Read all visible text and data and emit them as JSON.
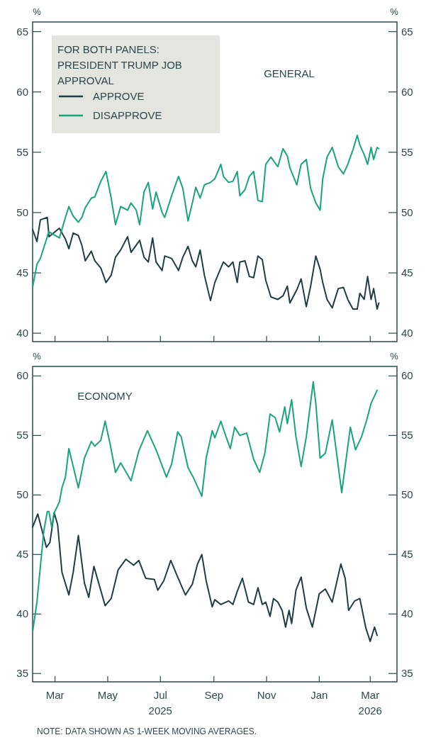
{
  "chart_data": [
    {
      "type": "line",
      "title": "GENERAL",
      "ylabel": "%",
      "y2label": "%",
      "legend_title": "FOR BOTH PANELS: PRESIDENT TRUMP JOB APPROVAL",
      "legend": "top left",
      "tick_labels": "y",
      "xlim": [
        "2025-02-03",
        "2026-04-01"
      ],
      "xticks": [
        {
          "value": "2025-03-01",
          "label": null
        },
        {
          "value": "2025-05-01",
          "label": null
        },
        {
          "value": "2025-07-01",
          "label": null
        },
        {
          "value": "2025-09-01",
          "label": null
        },
        {
          "value": "2025-11-01",
          "label": null
        },
        {
          "value": "2026-01-01",
          "label": null
        },
        {
          "value": "2026-03-01",
          "label": null
        }
      ],
      "ylim": [
        39.3,
        65.8
      ],
      "yticks": [
        40,
        45,
        50,
        55,
        60,
        65
      ],
      "y2lim": [
        39.3,
        65.8
      ],
      "y2ticks": [
        40,
        45,
        50,
        55,
        60,
        65
      ],
      "x": [
        "2025-02-03",
        "2025-02-08",
        "2025-02-12",
        "2025-02-20",
        "2025-02-22",
        "2025-03-06",
        "2025-03-13",
        "2025-03-17",
        "2025-03-22",
        "2025-03-28",
        "2025-04-01",
        "2025-04-05",
        "2025-04-12",
        "2025-04-16",
        "2025-04-23",
        "2025-04-29",
        "2025-05-05",
        "2025-05-10",
        "2025-05-16",
        "2025-05-24",
        "2025-05-28",
        "2025-06-03",
        "2025-06-07",
        "2025-06-12",
        "2025-06-17",
        "2025-06-22",
        "2025-06-26",
        "2025-07-03",
        "2025-07-06",
        "2025-07-14",
        "2025-07-22",
        "2025-07-27",
        "2025-08-02",
        "2025-08-07",
        "2025-08-11",
        "2025-08-16",
        "2025-08-21",
        "2025-08-28",
        "2025-09-02",
        "2025-09-09",
        "2025-09-12",
        "2025-09-18",
        "2025-09-23",
        "2025-09-28",
        "2025-10-01",
        "2025-10-07",
        "2025-10-12",
        "2025-10-17",
        "2025-10-22",
        "2025-10-27",
        "2025-10-31",
        "2025-11-06",
        "2025-11-14",
        "2025-11-20",
        "2025-11-25",
        "2025-11-28",
        "2025-12-06",
        "2025-12-11",
        "2025-12-17",
        "2025-12-22",
        "2025-12-28",
        "2026-01-02",
        "2026-01-05",
        "2026-01-10",
        "2026-01-16",
        "2026-01-23",
        "2026-01-29",
        "2026-02-03",
        "2026-02-09",
        "2026-02-14",
        "2026-02-17",
        "2026-02-22",
        "2026-02-26",
        "2026-03-02",
        "2026-03-05",
        "2026-03-09",
        "2026-03-11"
      ],
      "series": [
        {
          "name": "APPROVE",
          "color": "#1f3d45",
          "values": [
            48.6,
            47.6,
            49.4,
            49.6,
            48,
            48.7,
            47.8,
            47,
            48.3,
            48.1,
            47.3,
            46,
            46.8,
            46,
            45.4,
            44.2,
            44.8,
            46.3,
            46.9,
            48,
            46.7,
            47.3,
            47.7,
            46.3,
            45.9,
            47.9,
            45.9,
            45.2,
            46.4,
            46.2,
            45.2,
            46.3,
            47.2,
            46,
            45.5,
            46.9,
            44.8,
            42.7,
            44.2,
            45.4,
            45.9,
            45.5,
            45.9,
            44.2,
            45.9,
            46,
            44.7,
            44.6,
            46.4,
            46.1,
            44.4,
            43,
            42.8,
            43.1,
            43.9,
            42.5,
            43.6,
            44.5,
            42.2,
            43.9,
            46.4,
            45.3,
            44.2,
            42.8,
            42.1,
            43.7,
            43.8,
            42.8,
            42,
            42,
            43.3,
            42.8,
            44.7,
            42.8,
            43.7,
            42,
            42.5
          ]
        },
        {
          "name": "DISAPPROVE",
          "color": "#1aa37f",
          "values": [
            43.8,
            45.7,
            46.2,
            48,
            48.4,
            47.9,
            49.6,
            50.5,
            49.7,
            49.2,
            49.6,
            50.4,
            51.2,
            51.3,
            52.6,
            53.4,
            51.2,
            49,
            50.5,
            50.2,
            50.8,
            50.2,
            49,
            51.7,
            52.5,
            50.3,
            51.7,
            50,
            49.6,
            51.4,
            53,
            52,
            49.3,
            50.8,
            52.1,
            51.2,
            52.3,
            52.5,
            52.8,
            54,
            53,
            52.5,
            52.6,
            53.4,
            51.4,
            51.9,
            53,
            53.4,
            51,
            50.9,
            54,
            54.6,
            53.8,
            55.3,
            54.7,
            53.7,
            52.3,
            54,
            54.4,
            52,
            50.8,
            50.2,
            52.8,
            54.6,
            55.4,
            53.8,
            53.2,
            54,
            55.2,
            56.4,
            55.6,
            54.8,
            54,
            55.4,
            54.4,
            55.4,
            55.3
          ]
        }
      ]
    },
    {
      "type": "line",
      "title": "ECONOMY",
      "ylabel": "%",
      "y2label": "%",
      "xlim": [
        "2025-02-03",
        "2026-04-01"
      ],
      "xticks": [
        {
          "value": "2025-03-01",
          "label": "Mar"
        },
        {
          "value": "2025-05-01",
          "label": "May"
        },
        {
          "value": "2025-07-01",
          "label": "Jul\n2025"
        },
        {
          "value": "2025-09-01",
          "label": "Sep"
        },
        {
          "value": "2025-11-01",
          "label": "Nov"
        },
        {
          "value": "2026-01-01",
          "label": "Jan"
        },
        {
          "value": "2026-03-01",
          "label": "Mar\n2026"
        }
      ],
      "ylim": [
        34.3,
        60.8
      ],
      "yticks": [
        35,
        40,
        45,
        50,
        55,
        60
      ],
      "y2lim": [
        34.3,
        60.8
      ],
      "y2ticks": [
        35,
        40,
        45,
        50,
        55,
        60
      ],
      "annotations": [
        "NOTE: DATA SHOWN AS 1-WEEK MOVING AVERAGES."
      ],
      "series": [
        {
          "color": "#1f3d45",
          "x": [
            "2025-02-03",
            "2025-02-09",
            "2025-02-19",
            "2025-02-23",
            "2025-02-28",
            "2025-03-04",
            "2025-03-09",
            "2025-03-17",
            "2025-03-22",
            "2025-03-28",
            "2025-04-04",
            "2025-04-09",
            "2025-04-15",
            "2025-04-28",
            "2025-05-05",
            "2025-05-13",
            "2025-05-22",
            "2025-05-31",
            "2025-06-06",
            "2025-06-14",
            "2025-06-24",
            "2025-06-28",
            "2025-07-05",
            "2025-07-13",
            "2025-07-21",
            "2025-07-30",
            "2025-08-07",
            "2025-08-13",
            "2025-08-18",
            "2025-08-23",
            "2025-08-30",
            "2025-09-02",
            "2025-09-09",
            "2025-09-18",
            "2025-09-23",
            "2025-09-28",
            "2025-10-04",
            "2025-10-11",
            "2025-10-17",
            "2025-10-22",
            "2025-10-27",
            "2025-10-31",
            "2025-11-05",
            "2025-11-09",
            "2025-11-14",
            "2025-11-19",
            "2025-11-23",
            "2025-11-27",
            "2025-11-30",
            "2025-12-05",
            "2025-12-11",
            "2025-12-17",
            "2025-12-24",
            "2026-01-01",
            "2026-01-08",
            "2026-01-16",
            "2026-01-26",
            "2026-01-31",
            "2026-02-04",
            "2026-02-11",
            "2026-02-17",
            "2026-02-24",
            "2026-03-01",
            "2026-03-06",
            "2026-03-09"
          ],
          "values": [
            47.3,
            48.4,
            45.6,
            46,
            48.5,
            47.5,
            43.5,
            41.6,
            43.5,
            46.6,
            42.6,
            41.4,
            44,
            40.7,
            41.3,
            43.7,
            44.6,
            44.1,
            44.5,
            43,
            42.9,
            42,
            42.8,
            44.5,
            43.1,
            41.6,
            42.5,
            44.2,
            45,
            42.8,
            40.6,
            41.2,
            40.8,
            41.1,
            40.8,
            41.9,
            43,
            41,
            40.8,
            42.2,
            40.8,
            41,
            39.8,
            41.3,
            41,
            40.3,
            38.9,
            40.3,
            39.2,
            42,
            43.1,
            40.5,
            38.9,
            41.7,
            42.1,
            41,
            44.2,
            43,
            40.3,
            41.1,
            41.3,
            38.8,
            37.7,
            38.9,
            38.2
          ]
        },
        {
          "color": "#1aa37f",
          "x": [
            "2025-02-03",
            "2025-02-08",
            "2025-02-12",
            "2025-02-16",
            "2025-02-20",
            "2025-02-22",
            "2025-02-25",
            "2025-02-28",
            "2025-03-06",
            "2025-03-09",
            "2025-03-13",
            "2025-03-17",
            "2025-03-22",
            "2025-03-28",
            "2025-04-04",
            "2025-04-12",
            "2025-04-16",
            "2025-04-23",
            "2025-04-28",
            "2025-05-04",
            "2025-05-10",
            "2025-05-16",
            "2025-05-28",
            "2025-06-06",
            "2025-06-16",
            "2025-06-26",
            "2025-07-08",
            "2025-07-14",
            "2025-07-21",
            "2025-07-25",
            "2025-08-02",
            "2025-08-08",
            "2025-08-18",
            "2025-08-23",
            "2025-08-30",
            "2025-09-02",
            "2025-09-09",
            "2025-09-15",
            "2025-09-20",
            "2025-09-25",
            "2025-10-01",
            "2025-10-09",
            "2025-10-17",
            "2025-10-24",
            "2025-10-30",
            "2025-11-05",
            "2025-11-11",
            "2025-11-16",
            "2025-11-22",
            "2025-11-25",
            "2025-11-30",
            "2025-12-05",
            "2025-12-11",
            "2025-12-17",
            "2025-12-25",
            "2025-12-28",
            "2026-01-02",
            "2026-01-08",
            "2026-01-16",
            "2026-01-27",
            "2026-02-06",
            "2026-02-12",
            "2026-02-19",
            "2026-02-25",
            "2026-03-02",
            "2026-03-09"
          ],
          "values": [
            38.5,
            41,
            44,
            47,
            48.6,
            48.6,
            47.3,
            48.5,
            49.4,
            50.6,
            51.5,
            53.9,
            52.4,
            50.6,
            53.1,
            54.5,
            54.1,
            54.6,
            56.2,
            54.2,
            51.9,
            52.7,
            51.2,
            53.7,
            55.4,
            53.8,
            51.5,
            52.6,
            55.3,
            54.9,
            52.3,
            51.5,
            49.9,
            53.1,
            55.4,
            54.8,
            56.2,
            54.9,
            53.9,
            55.7,
            55,
            55.2,
            53,
            51.9,
            53.5,
            56.8,
            56.5,
            55.3,
            57.4,
            56,
            58,
            54.9,
            52.4,
            54.9,
            59.5,
            57.7,
            53.1,
            53.5,
            56.3,
            50.2,
            55.7,
            53.8,
            54.9,
            56.3,
            57.7,
            58.8
          ]
        }
      ]
    }
  ]
}
